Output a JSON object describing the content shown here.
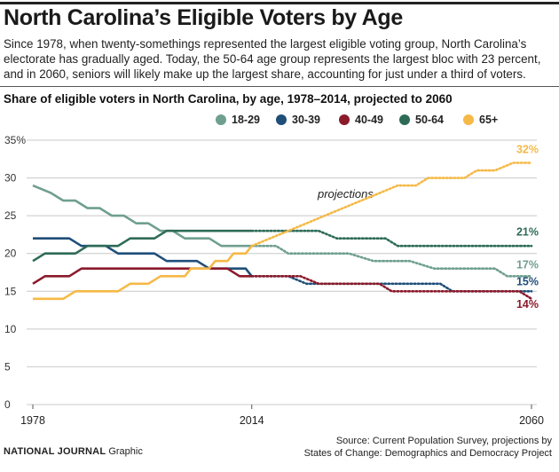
{
  "header": {
    "title": "North Carolina’s Eligible Voters by Age",
    "subtitle": "Since 1978, when twenty-somethings represented the largest eligible voting group, North Carolina’s electorate has gradually aged. Today, the 50-64 age group represents the largest bloc with 23 percent, and in 2060, seniors will likely make up the largest share, accounting for just under a third of voters."
  },
  "footer": {
    "brand": "NATIONAL JOURNAL",
    "brand_suffix": "Graphic",
    "source_line1": "Source: Current Population Survey, projections by",
    "source_line2": "States of Change: Demographics and Democracy Project"
  },
  "chart_data": {
    "type": "line",
    "title": "Share of eligible voters in North Carolina, by age, 1978–2014, projected to 2060",
    "xlabel": "",
    "ylabel": "",
    "xlim": [
      1978,
      2060
    ],
    "ylim": [
      0,
      35
    ],
    "x_ticks": [
      "1978",
      "2014",
      "2060"
    ],
    "y_ticks": [
      "0",
      "5",
      "10",
      "15",
      "20",
      "25",
      "30",
      "35%"
    ],
    "grid": "horizontal",
    "legend_position": "top",
    "annotation": "projections",
    "historical_end": 2014,
    "series": [
      {
        "name": "18-29",
        "color": "#6f9f8f",
        "end_label": "17%",
        "points": [
          [
            1978,
            29
          ],
          [
            1981,
            28
          ],
          [
            1983,
            27
          ],
          [
            1985,
            27
          ],
          [
            1987,
            26
          ],
          [
            1989,
            26
          ],
          [
            1991,
            25
          ],
          [
            1993,
            25
          ],
          [
            1995,
            24
          ],
          [
            1997,
            24
          ],
          [
            1999,
            23
          ],
          [
            2001,
            23
          ],
          [
            2003,
            22
          ],
          [
            2005,
            22
          ],
          [
            2007,
            22
          ],
          [
            2009,
            21
          ],
          [
            2011,
            21
          ],
          [
            2013,
            21
          ],
          [
            2014,
            21
          ],
          [
            2018,
            21
          ],
          [
            2020,
            20
          ],
          [
            2025,
            20
          ],
          [
            2030,
            20
          ],
          [
            2034,
            19
          ],
          [
            2040,
            19
          ],
          [
            2044,
            18
          ],
          [
            2050,
            18
          ],
          [
            2054,
            18
          ],
          [
            2056,
            17
          ],
          [
            2060,
            17
          ]
        ]
      },
      {
        "name": "30-39",
        "color": "#1f4e79",
        "end_label": "15%",
        "points": [
          [
            1978,
            22
          ],
          [
            1980,
            22
          ],
          [
            1984,
            22
          ],
          [
            1986,
            21
          ],
          [
            1990,
            21
          ],
          [
            1992,
            20
          ],
          [
            1998,
            20
          ],
          [
            2000,
            19
          ],
          [
            2005,
            19
          ],
          [
            2007,
            18
          ],
          [
            2013,
            18
          ],
          [
            2014,
            17
          ],
          [
            2020,
            17
          ],
          [
            2023,
            16
          ],
          [
            2030,
            16
          ],
          [
            2035,
            16
          ],
          [
            2040,
            16
          ],
          [
            2045,
            16
          ],
          [
            2047,
            15
          ],
          [
            2055,
            15
          ],
          [
            2060,
            15
          ]
        ]
      },
      {
        "name": "40-49",
        "color": "#8b1a2b",
        "end_label": "14%",
        "points": [
          [
            1978,
            16
          ],
          [
            1980,
            17
          ],
          [
            1984,
            17
          ],
          [
            1986,
            18
          ],
          [
            1990,
            18
          ],
          [
            1995,
            18
          ],
          [
            2000,
            18
          ],
          [
            2005,
            18
          ],
          [
            2010,
            18
          ],
          [
            2012,
            17
          ],
          [
            2014,
            17
          ],
          [
            2018,
            17
          ],
          [
            2022,
            17
          ],
          [
            2025,
            16
          ],
          [
            2030,
            16
          ],
          [
            2035,
            16
          ],
          [
            2037,
            15
          ],
          [
            2045,
            15
          ],
          [
            2050,
            15
          ],
          [
            2055,
            15
          ],
          [
            2058,
            15
          ],
          [
            2060,
            14
          ]
        ]
      },
      {
        "name": "50-64",
        "color": "#2e6b57",
        "end_label": "21%",
        "points": [
          [
            1978,
            19
          ],
          [
            1980,
            20
          ],
          [
            1985,
            20
          ],
          [
            1987,
            21
          ],
          [
            1992,
            21
          ],
          [
            1994,
            22
          ],
          [
            1998,
            22
          ],
          [
            2000,
            23
          ],
          [
            2005,
            23
          ],
          [
            2010,
            23
          ],
          [
            2014,
            23
          ],
          [
            2025,
            23
          ],
          [
            2028,
            22
          ],
          [
            2036,
            22
          ],
          [
            2038,
            21
          ],
          [
            2045,
            21
          ],
          [
            2050,
            21
          ],
          [
            2055,
            21
          ],
          [
            2060,
            21
          ]
        ]
      },
      {
        "name": "65+",
        "color": "#f5b947",
        "end_label": "32%",
        "points": [
          [
            1978,
            14
          ],
          [
            1983,
            14
          ],
          [
            1985,
            15
          ],
          [
            1992,
            15
          ],
          [
            1994,
            16
          ],
          [
            1997,
            16
          ],
          [
            1999,
            17
          ],
          [
            2003,
            17
          ],
          [
            2004,
            18
          ],
          [
            2007,
            18
          ],
          [
            2008,
            19
          ],
          [
            2010,
            19
          ],
          [
            2011,
            20
          ],
          [
            2013,
            20
          ],
          [
            2014,
            21
          ],
          [
            2017,
            22
          ],
          [
            2020,
            23
          ],
          [
            2023,
            24
          ],
          [
            2026,
            25
          ],
          [
            2029,
            26
          ],
          [
            2032,
            27
          ],
          [
            2035,
            28
          ],
          [
            2038,
            29
          ],
          [
            2041,
            29
          ],
          [
            2043,
            30
          ],
          [
            2046,
            30
          ],
          [
            2049,
            30
          ],
          [
            2051,
            31
          ],
          [
            2054,
            31
          ],
          [
            2057,
            32
          ],
          [
            2060,
            32
          ]
        ]
      }
    ]
  }
}
